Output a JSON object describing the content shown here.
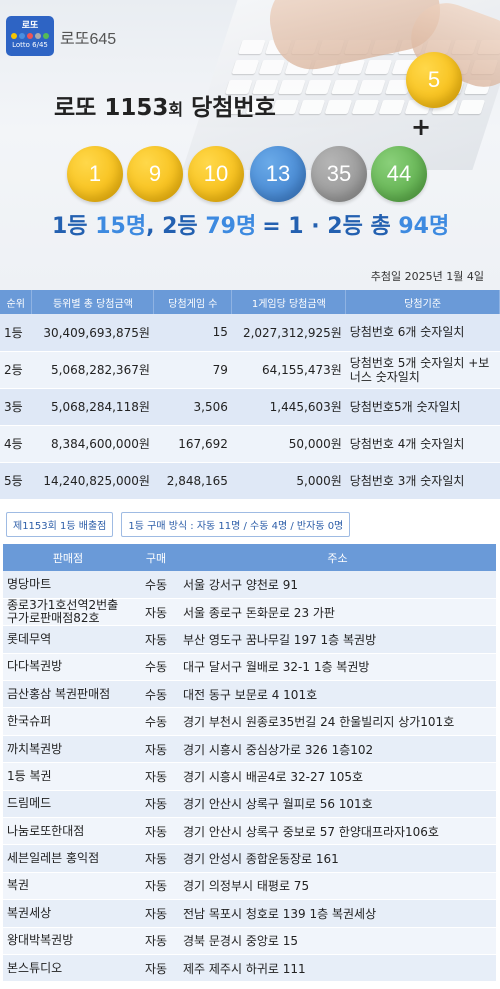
{
  "brand": {
    "logo_text": "로또",
    "logo_sub": "Lotto 6/45",
    "name": "로또645"
  },
  "colors": {
    "yellow": "#f2b200",
    "blue": "#3678c8",
    "gray": "#8c8c8c",
    "green": "#4ea23c",
    "header_blue": "#6a9ad8"
  },
  "title": {
    "prefix": "로또 ",
    "round": "1153",
    "round_unit": "회",
    "suffix": " 당첨번호"
  },
  "balls": [
    {
      "number": "1",
      "color": "yellow"
    },
    {
      "number": "9",
      "color": "yellow"
    },
    {
      "number": "10",
      "color": "yellow"
    },
    {
      "number": "13",
      "color": "blue"
    },
    {
      "number": "35",
      "color": "gray"
    },
    {
      "number": "44",
      "color": "green"
    }
  ],
  "bonus": {
    "number": "5",
    "color": "yellow",
    "plus": "+"
  },
  "summary": {
    "first_label": "1등 ",
    "first_count": "15명",
    "sep": ", ",
    "second_label": "2등 ",
    "second_count": "79명",
    "total_label": "=  1 · 2등  총 ",
    "total_count": "94명"
  },
  "draw_date": "추첨일  2025년 1월 4일",
  "prize_table": {
    "headers": [
      "순위",
      "등위별 총 당첨금액",
      "당첨게임 수",
      "1게임당 당첨금액",
      "당첨기준"
    ],
    "rows": [
      {
        "rank": "1등",
        "total": "30,409,693,875원",
        "games": "15",
        "per_game": "2,027,312,925원",
        "criteria": "당첨번호 6개 숫자일치"
      },
      {
        "rank": "2등",
        "total": "5,068,282,367원",
        "games": "79",
        "per_game": "64,155,473원",
        "criteria": "당첨번호 5개 숫자일치 +보너스 숫자일치"
      },
      {
        "rank": "3등",
        "total": "5,068,284,118원",
        "games": "3,506",
        "per_game": "1,445,603원",
        "criteria": "당첨번호5개 숫자일치"
      },
      {
        "rank": "4등",
        "total": "8,384,600,000원",
        "games": "167,692",
        "per_game": "50,000원",
        "criteria": "당첨번호 4개 숫자일치"
      },
      {
        "rank": "5등",
        "total": "14,240,825,000원",
        "games": "2,848,165",
        "per_game": "5,000원",
        "criteria": "당첨번호 3개 숫자일치"
      }
    ]
  },
  "stores_header": {
    "round_label": "제1153회 1등 배출점",
    "method_label": "1등 구매 방식 : 자동 11명 / 수동 4명 / 반자동 0명"
  },
  "stores_table": {
    "headers": [
      "판매점",
      "구매",
      "주소"
    ],
    "rows": [
      {
        "name": "명당마트",
        "type": "수동",
        "address": "서울 강서구 양천로 91"
      },
      {
        "name": "종로3가1호선역2번출구가로판매점82호",
        "type": "자동",
        "address": "서울 종로구 돈화문로 23 가판"
      },
      {
        "name": "롯데무역",
        "type": "자동",
        "address": "부산 영도구 꿈나무길 197 1층 복권방"
      },
      {
        "name": "다다복권방",
        "type": "수동",
        "address": "대구 달서구 월배로 32-1 1층 복권방"
      },
      {
        "name": "금산홍삼 복권판매점",
        "type": "수동",
        "address": "대전 동구 보문로 4 101호"
      },
      {
        "name": "한국슈퍼",
        "type": "수동",
        "address": "경기 부천시 원종로35번길 24 한울빌리지 상가101호"
      },
      {
        "name": "까치복권방",
        "type": "자동",
        "address": "경기 시흥시 중심상가로 326 1층102"
      },
      {
        "name": "1등 복권",
        "type": "자동",
        "address": "경기 시흥시 배곧4로 32-27 105호"
      },
      {
        "name": "드림메드",
        "type": "자동",
        "address": "경기 안산시 상록구 월피로 56 101호"
      },
      {
        "name": "나눔로또한대점",
        "type": "자동",
        "address": "경기 안산시 상록구 중보로 57 한양대프라자106호"
      },
      {
        "name": "세븐일레븐 홍익점",
        "type": "자동",
        "address": "경기 안성시 종합운동장로 161"
      },
      {
        "name": "복권",
        "type": "자동",
        "address": "경기 의정부시 태평로 75"
      },
      {
        "name": "복권세상",
        "type": "자동",
        "address": "전남 목포시 청호로 139 1층 복권세상"
      },
      {
        "name": "왕대박복권방",
        "type": "자동",
        "address": "경북 문경시 중앙로 15"
      },
      {
        "name": "본스튜디오",
        "type": "자동",
        "address": "제주 제주시 하귀로 111"
      }
    ]
  }
}
